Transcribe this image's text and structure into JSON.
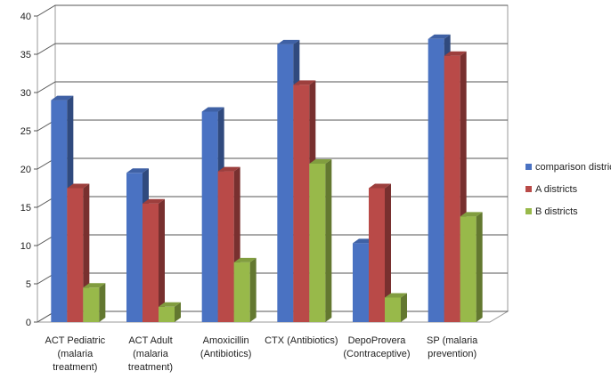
{
  "chart_data": {
    "type": "bar",
    "three_d": true,
    "categories": [
      [
        "ACT Pediatric",
        "(malaria",
        "treatment)"
      ],
      [
        "ACT Adult",
        "(malaria",
        "treatment)"
      ],
      [
        "Amoxicillin",
        "(Antibiotics)"
      ],
      [
        "CTX (Antibiotics)"
      ],
      [
        "DepoProvera",
        "(Contraceptive)"
      ],
      [
        "SP (malaria",
        "prevention)"
      ]
    ],
    "series": [
      {
        "name": "comparison districts",
        "color": "#4a72c2",
        "values": [
          29,
          19.5,
          27.5,
          36.3,
          10.3,
          37
        ]
      },
      {
        "name": "A districts",
        "color": "#b94a48",
        "values": [
          17.5,
          15.5,
          19.7,
          31,
          17.5,
          34.8
        ]
      },
      {
        "name": "B districts",
        "color": "#98b94a",
        "values": [
          4.5,
          2,
          7.8,
          20.7,
          3.2,
          13.8
        ]
      }
    ],
    "ylim": [
      0,
      40
    ],
    "yticks": [
      0,
      5,
      10,
      15,
      20,
      25,
      30,
      35,
      40
    ],
    "grid": true,
    "legend": "right",
    "title": "",
    "xlabel": "",
    "ylabel": ""
  }
}
